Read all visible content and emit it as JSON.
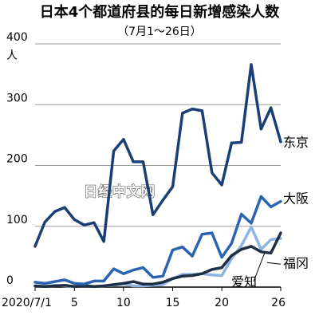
{
  "watermark": "日经中文网",
  "chart_data": {
    "type": "line",
    "title": "日本4个都道府县的每日新增感染人数",
    "subtitle": "（7月1～26日）",
    "y_unit_label": "人",
    "ylim": [
      0,
      400
    ],
    "yticks": [
      "0",
      "100",
      "200",
      "300",
      "400"
    ],
    "x": [
      1,
      2,
      3,
      4,
      5,
      6,
      7,
      8,
      9,
      10,
      11,
      12,
      13,
      14,
      15,
      16,
      17,
      18,
      19,
      20,
      21,
      22,
      23,
      24,
      25,
      26
    ],
    "xlim": [
      1,
      26
    ],
    "xticks": [
      {
        "x": 1,
        "label": "2020/7/1"
      },
      {
        "x": 5,
        "label": "5"
      },
      {
        "x": 10,
        "label": "10"
      },
      {
        "x": 15,
        "label": "15"
      },
      {
        "x": 20,
        "label": "20"
      },
      {
        "x": 26,
        "label": "26"
      }
    ],
    "grid": true,
    "series": [
      {
        "name": "东京",
        "color": "#1a3f74",
        "label_dy": 0,
        "values": [
          67,
          107,
          124,
          131,
          111,
          102,
          106,
          75,
          224,
          243,
          206,
          206,
          119,
          143,
          165,
          286,
          293,
          290,
          188,
          168,
          237,
          238,
          366,
          260,
          295,
          239
        ]
      },
      {
        "name": "大阪",
        "color": "#2a64b0",
        "label_dy": 0,
        "values": [
          8,
          6,
          9,
          12,
          6,
          5,
          10,
          10,
          30,
          22,
          28,
          32,
          16,
          18,
          61,
          66,
          51,
          87,
          89,
          49,
          72,
          120,
          105,
          149,
          132,
          141
        ]
      },
      {
        "name": "福冈",
        "color": "#1e2f44",
        "label_dy": 8,
        "values": [
          2,
          1,
          2,
          3,
          1,
          2,
          1,
          2,
          4,
          6,
          9,
          5,
          5,
          8,
          14,
          18,
          19,
          22,
          29,
          32,
          52,
          62,
          67,
          58,
          56,
          89
        ]
      },
      {
        "name": "爱知",
        "color": "#8fb3e0",
        "label_dy": 0,
        "values": [
          2,
          1,
          3,
          2,
          1,
          3,
          1,
          2,
          3,
          5,
          2,
          2,
          3,
          4,
          14,
          21,
          21,
          22,
          20,
          19,
          47,
          68,
          99,
          62,
          78,
          80
        ]
      }
    ]
  }
}
